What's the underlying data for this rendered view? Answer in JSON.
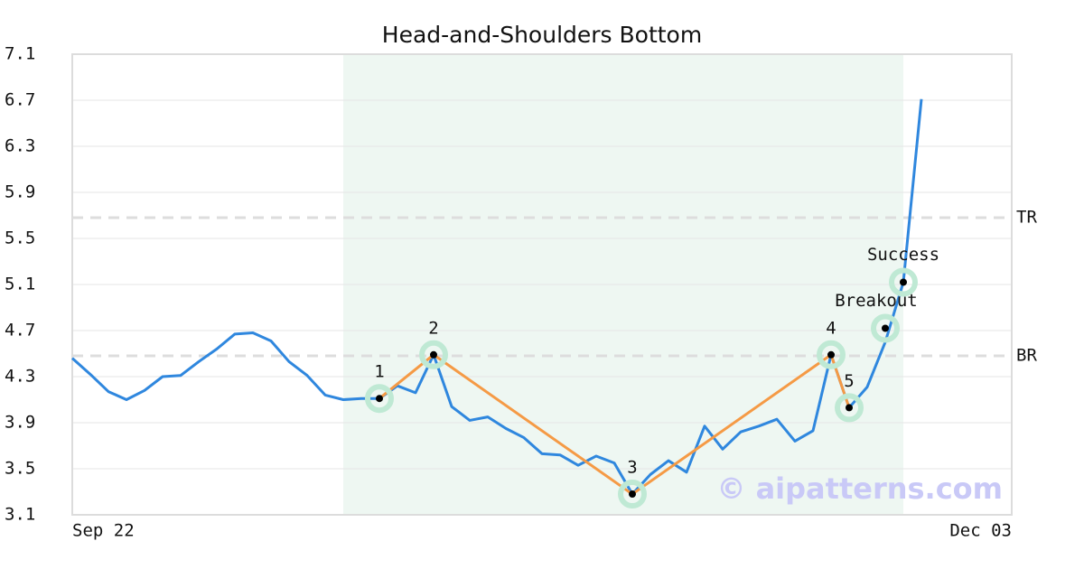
{
  "chart_data": {
    "type": "line",
    "title": "Head-and-Shoulders Bottom",
    "categories": [
      "Sep 22",
      null,
      null,
      null,
      null,
      null,
      null,
      null,
      null,
      null,
      null,
      null,
      null,
      null,
      null,
      null,
      null,
      null,
      null,
      null,
      null,
      null,
      null,
      null,
      null,
      null,
      null,
      null,
      null,
      null,
      null,
      null,
      null,
      null,
      null,
      null,
      null,
      null,
      null,
      null,
      null,
      null,
      null,
      null,
      null,
      null,
      null,
      null,
      null,
      null,
      null,
      null,
      "Dec 03"
    ],
    "series": [
      {
        "color": "#2f87de",
        "values": [
          4.46,
          4.32,
          4.17,
          4.1,
          4.18,
          4.3,
          4.31,
          4.43,
          4.54,
          4.67,
          4.68,
          4.61,
          4.43,
          4.31,
          4.14,
          4.1,
          4.11,
          4.11,
          4.22,
          4.16,
          4.49,
          4.04,
          3.92,
          3.95,
          3.85,
          3.77,
          3.63,
          3.62,
          3.53,
          3.61,
          3.55,
          3.28,
          3.45,
          3.57,
          3.47,
          3.87,
          3.67,
          3.82,
          3.87,
          3.93,
          3.74,
          3.83,
          4.49,
          4.03,
          4.21,
          4.6,
          5.12,
          6.71,
          null,
          null,
          null,
          null,
          null
        ]
      }
    ],
    "pattern_color": "#f59a45",
    "pattern_points": [
      {
        "label": "1",
        "x": 17,
        "y": 4.11
      },
      {
        "label": "2",
        "x": 20,
        "y": 4.49
      },
      {
        "label": "3",
        "x": 31,
        "y": 3.28
      },
      {
        "label": "4",
        "x": 42,
        "y": 4.49
      },
      {
        "label": "5",
        "x": 43,
        "y": 4.03
      }
    ],
    "signals": [
      {
        "label": "Breakout",
        "x": 45,
        "y": 4.72
      },
      {
        "label": "Success",
        "x": 46,
        "y": 5.12
      }
    ],
    "levels": [
      {
        "label": "TR",
        "value": 5.68
      },
      {
        "label": "BR",
        "value": 4.48
      }
    ],
    "highlight": {
      "from": 15,
      "to": 46
    },
    "ylim": [
      3.1,
      7.1
    ],
    "yticks": [
      3.1,
      3.5,
      3.9,
      4.3,
      4.7,
      5.1,
      5.5,
      5.9,
      6.3,
      6.7,
      7.1
    ],
    "grid": true,
    "watermark": "© aipatterns.com"
  }
}
